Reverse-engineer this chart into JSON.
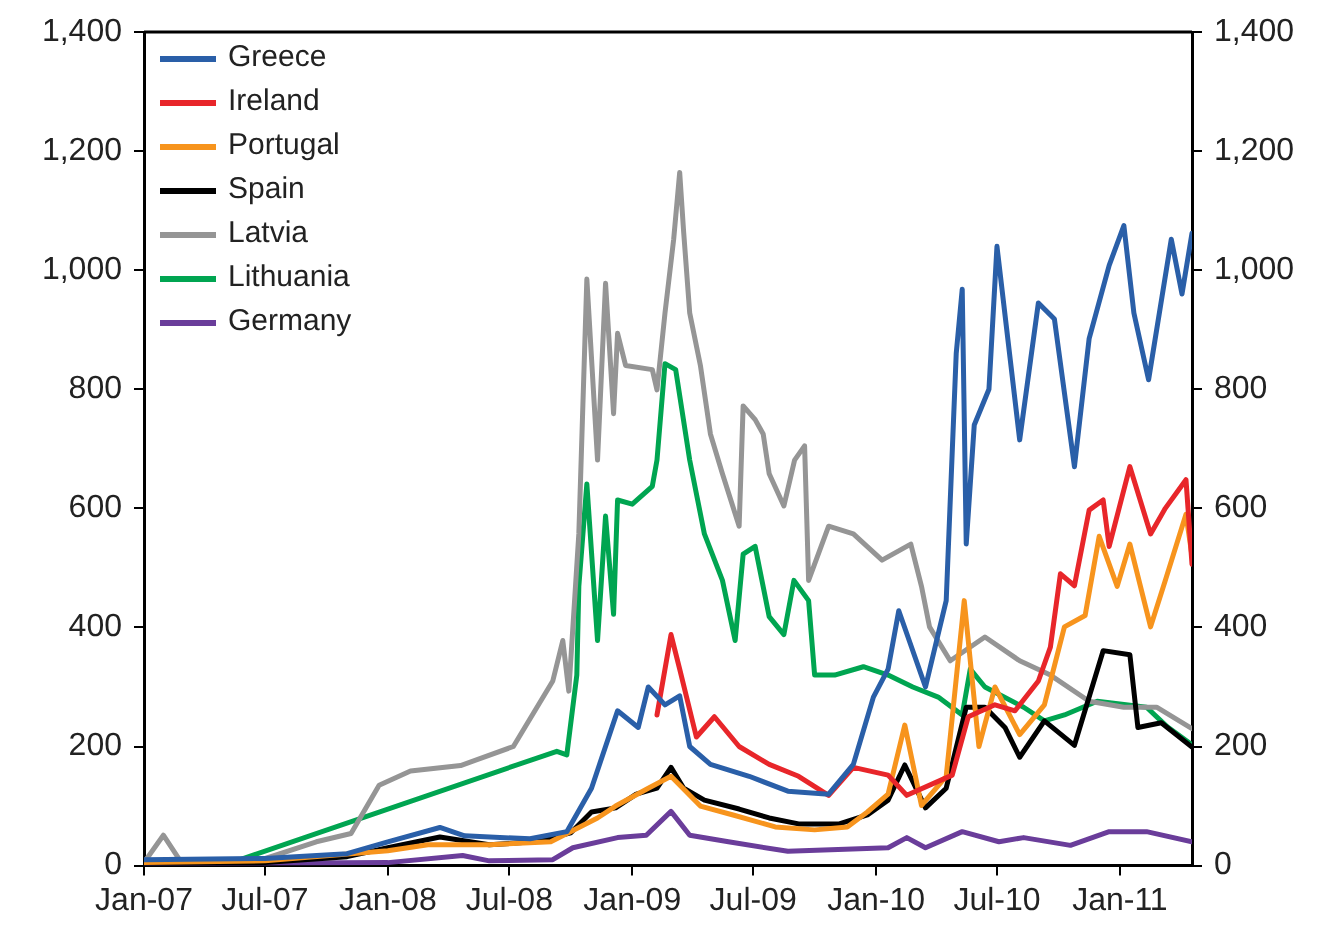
{
  "chart_data": {
    "type": "line",
    "legend": "top left",
    "grid": false,
    "marker": "none",
    "line_style": "solid",
    "xlim": [
      "2007-01-01",
      "2011-04-19"
    ],
    "xticks": [
      {
        "value": "2007-01-01",
        "label": "Jan-07"
      },
      {
        "value": "2007-07-01",
        "label": "Jul-07"
      },
      {
        "value": "2008-01-01",
        "label": "Jan-08"
      },
      {
        "value": "2008-07-01",
        "label": "Jul-08"
      },
      {
        "value": "2009-01-01",
        "label": "Jan-09"
      },
      {
        "value": "2009-07-01",
        "label": "Jul-09"
      },
      {
        "value": "2010-01-01",
        "label": "Jan-10"
      },
      {
        "value": "2010-07-01",
        "label": "Jul-10"
      },
      {
        "value": "2011-01-01",
        "label": "Jan-11"
      }
    ],
    "ylim": [
      0,
      1400
    ],
    "yticks": [
      0,
      200,
      400,
      600,
      800,
      {
        "value": 1000,
        "label": "1,000"
      },
      {
        "value": 1200,
        "label": "1,200"
      },
      {
        "value": 1400,
        "label": "1,400"
      }
    ],
    "y2lim": [
      0,
      1400
    ],
    "y2ticks": [
      0,
      200,
      400,
      600,
      800,
      {
        "value": 1000,
        "label": "1,000"
      },
      {
        "value": 1200,
        "label": "1,200"
      },
      {
        "value": 1400,
        "label": "1,400"
      }
    ],
    "series": [
      {
        "name": "Greece",
        "color": "#2a5fa8",
        "x": [
          "2007-01-01",
          "2007-07-01",
          "2007-11-01",
          "2008-01-01",
          "2008-03-19",
          "2008-04-25",
          "2008-08-01",
          "2008-09-25",
          "2008-11-01",
          "2008-12-10",
          "2009-01-10",
          "2009-01-25",
          "2009-02-19",
          "2009-03-13",
          "2009-03-28",
          "2009-04-28",
          "2009-06-25",
          "2009-08-22",
          "2009-10-22",
          "2009-11-28",
          "2009-12-28",
          "2010-01-19",
          "2010-02-04",
          "2010-03-16",
          "2010-04-16",
          "2010-05-01",
          "2010-05-10",
          "2010-05-16",
          "2010-05-28",
          "2010-06-19",
          "2010-07-01",
          "2010-08-04",
          "2010-09-01",
          "2010-09-25",
          "2010-10-25",
          "2010-11-16",
          "2010-12-16",
          "2011-01-07",
          "2011-01-22",
          "2011-02-13",
          "2011-03-19",
          "2011-04-04",
          "2011-04-19"
        ],
        "values": [
          10,
          12,
          20,
          40,
          64,
          50,
          45,
          57,
          130,
          260,
          232,
          300,
          270,
          285,
          200,
          170,
          150,
          125,
          120,
          170,
          283,
          330,
          428,
          300,
          445,
          860,
          968,
          540,
          740,
          800,
          1040,
          715,
          945,
          918,
          670,
          885,
          1008,
          1075,
          928,
          816,
          1052,
          960,
          1062
        ]
      },
      {
        "name": "Ireland",
        "color": "#e8262a",
        "x": [
          "2009-02-07",
          "2009-02-28",
          "2009-03-13",
          "2009-04-07",
          "2009-05-04",
          "2009-06-10",
          "2009-07-25",
          "2009-09-07",
          "2009-10-22",
          "2009-11-28",
          "2010-01-19",
          "2010-02-16",
          "2010-04-25",
          "2010-05-19",
          "2010-06-28",
          "2010-07-28",
          "2010-09-01",
          "2010-09-19",
          "2010-10-04",
          "2010-10-25",
          "2010-11-16",
          "2010-12-07",
          "2010-12-16",
          "2011-01-16",
          "2011-02-16",
          "2011-03-10",
          "2011-04-10",
          "2011-04-19"
        ],
        "values": [
          253,
          388,
          330,
          216,
          250,
          200,
          170,
          150,
          118,
          165,
          152,
          118,
          152,
          250,
          270,
          260,
          310,
          367,
          490,
          470,
          597,
          614,
          536,
          670,
          557,
          600,
          648,
          506
        ]
      },
      {
        "name": "Portugal",
        "color": "#f7941d",
        "x": [
          "2007-01-01",
          "2007-07-01",
          "2008-01-01",
          "2008-03-01",
          "2008-06-01",
          "2008-09-01",
          "2008-11-10",
          "2008-12-07",
          "2009-01-25",
          "2009-02-28",
          "2009-04-13",
          "2009-06-01",
          "2009-08-03",
          "2009-10-01",
          "2009-11-19",
          "2009-12-19",
          "2010-01-19",
          "2010-02-13",
          "2010-03-10",
          "2010-04-16",
          "2010-05-13",
          "2010-06-04",
          "2010-06-28",
          "2010-08-04",
          "2010-09-10",
          "2010-10-10",
          "2010-11-10",
          "2010-12-01",
          "2010-12-28",
          "2011-01-16",
          "2011-02-16",
          "2011-03-10",
          "2011-04-10",
          "2011-04-19"
        ],
        "values": [
          5,
          8,
          25,
          35,
          35,
          40,
          80,
          100,
          130,
          150,
          100,
          85,
          65,
          60,
          65,
          90,
          120,
          236,
          101,
          150,
          445,
          200,
          300,
          220,
          270,
          401,
          420,
          553,
          469,
          540,
          401,
          479,
          590,
          520
        ]
      },
      {
        "name": "Spain",
        "color": "#000000",
        "x": [
          "2007-01-01",
          "2007-07-01",
          "2007-11-01",
          "2008-01-01",
          "2008-03-19",
          "2008-06-01",
          "2008-08-07",
          "2008-10-01",
          "2008-11-01",
          "2008-12-07",
          "2009-01-07",
          "2009-02-07",
          "2009-02-28",
          "2009-03-19",
          "2009-04-19",
          "2009-06-10",
          "2009-07-25",
          "2009-09-07",
          "2009-11-07",
          "2009-12-19",
          "2010-01-19",
          "2010-02-13",
          "2010-03-16",
          "2010-04-16",
          "2010-05-16",
          "2010-06-13",
          "2010-07-13",
          "2010-08-04",
          "2010-09-10",
          "2010-10-25",
          "2010-12-07",
          "2011-01-16",
          "2011-01-28",
          "2011-03-04",
          "2011-04-19"
        ],
        "values": [
          3,
          5,
          15,
          30,
          48,
          35,
          40,
          55,
          90,
          97,
          120,
          130,
          165,
          130,
          110,
          95,
          80,
          70,
          70,
          85,
          110,
          169,
          97,
          130,
          266,
          266,
          232,
          182,
          243,
          202,
          361,
          354,
          232,
          240,
          199
        ]
      },
      {
        "name": "Latvia",
        "color": "#959595",
        "x": [
          "2007-01-01",
          "2007-01-30",
          "2007-02-26",
          "2007-06-13",
          "2007-09-16",
          "2007-11-07",
          "2007-12-19",
          "2008-02-04",
          "2008-04-19",
          "2008-07-07",
          "2008-09-04",
          "2008-09-19",
          "2008-09-28",
          "2008-10-13",
          "2008-10-25",
          "2008-11-10",
          "2008-11-22",
          "2008-12-04",
          "2008-12-10",
          "2008-12-22",
          "2009-01-31",
          "2009-02-07",
          "2009-02-19",
          "2009-03-04",
          "2009-03-13",
          "2009-03-19",
          "2009-03-28",
          "2009-04-13",
          "2009-04-28",
          "2009-05-16",
          "2009-06-10",
          "2009-06-16",
          "2009-07-04",
          "2009-07-16",
          "2009-07-25",
          "2009-08-16",
          "2009-09-01",
          "2009-09-16",
          "2009-09-22",
          "2009-10-22",
          "2009-11-28",
          "2010-01-10",
          "2010-02-22",
          "2010-03-10",
          "2010-03-22",
          "2010-04-22",
          "2010-06-13",
          "2010-08-04",
          "2010-09-19",
          "2010-11-16",
          "2011-01-07",
          "2011-02-25",
          "2011-04-19"
        ],
        "values": [
          5,
          51,
          5,
          5,
          40,
          54,
          135,
          159,
          168,
          200,
          310,
          378,
          293,
          557,
          985,
          681,
          978,
          759,
          894,
          840,
          833,
          799,
          928,
          1052,
          1164,
          1063,
          928,
          840,
          725,
          658,
          570,
          772,
          749,
          725,
          658,
          604,
          681,
          705,
          479,
          570,
          557,
          513,
          540,
          469,
          401,
          344,
          384,
          344,
          320,
          276,
          266,
          266,
          230
        ]
      },
      {
        "name": "Lithuania",
        "color": "#00a551",
        "x": [
          "2007-01-01",
          "2007-05-12",
          "2008-09-10",
          "2008-09-25",
          "2008-10-10",
          "2008-10-13",
          "2008-10-25",
          "2008-11-10",
          "2008-11-22",
          "2008-12-04",
          "2008-12-10",
          "2009-01-01",
          "2009-01-31",
          "2009-02-07",
          "2009-02-19",
          "2009-03-07",
          "2009-03-28",
          "2009-04-19",
          "2009-05-16",
          "2009-06-04",
          "2009-06-16",
          "2009-07-04",
          "2009-07-25",
          "2009-08-16",
          "2009-08-31",
          "2009-09-22",
          "2009-10-01",
          "2009-10-31",
          "2009-12-13",
          "2010-01-19",
          "2010-02-25",
          "2010-04-04",
          "2010-05-10",
          "2010-05-22",
          "2010-06-13",
          "2010-08-10",
          "2010-09-10",
          "2010-10-10",
          "2010-11-28",
          "2011-02-10",
          "2011-03-13",
          "2011-04-19"
        ],
        "values": [
          5,
          5,
          192,
          186,
          320,
          469,
          641,
          378,
          587,
          422,
          614,
          607,
          637,
          681,
          843,
          833,
          681,
          557,
          479,
          378,
          523,
          536,
          418,
          388,
          479,
          445,
          320,
          320,
          334,
          320,
          300,
          283,
          253,
          330,
          300,
          266,
          243,
          253,
          276,
          266,
          233,
          203
        ]
      },
      {
        "name": "Germany",
        "color": "#6a3d9a",
        "x": [
          "2007-01-01",
          "2008-01-01",
          "2008-04-22",
          "2008-06-01",
          "2008-09-04",
          "2008-10-04",
          "2008-12-10",
          "2009-01-22",
          "2009-02-28",
          "2009-03-28",
          "2009-05-25",
          "2009-08-22",
          "2010-01-19",
          "2010-02-16",
          "2010-03-16",
          "2010-05-10",
          "2010-07-04",
          "2010-08-10",
          "2010-10-19",
          "2010-12-16",
          "2011-02-10",
          "2011-04-19"
        ],
        "values": [
          3,
          5,
          17,
          8,
          10,
          30,
          47,
          51,
          91,
          51,
          40,
          24,
          30,
          47,
          30,
          57,
          40,
          47,
          34,
          57,
          57,
          40
        ]
      }
    ]
  }
}
